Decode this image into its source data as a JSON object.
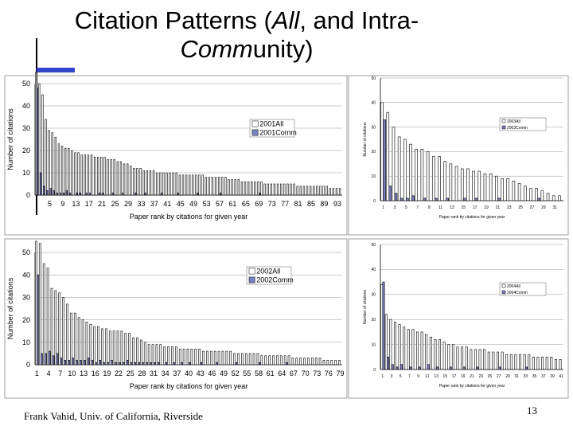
{
  "slide": {
    "title_part1": "Citation Patterns (",
    "title_em1": "All",
    "title_part2": ", and Intra-",
    "title_em2": "Comm",
    "title_part3": "unity)",
    "footer": "Frank Vahid, Univ. of California, Riverside",
    "page_number": "13"
  },
  "colors": {
    "all_fill": "#ffffff",
    "comm_fill": "#7b80c0",
    "bar_stroke": "#000000",
    "accent": "#3344cc"
  },
  "chart_data": [
    {
      "type": "bar",
      "xlabel": "Paper rank by citations for given year",
      "ylabel": "Number of citations",
      "ylim": [
        0,
        50
      ],
      "yticks": [
        0,
        10,
        20,
        30,
        40,
        50
      ],
      "xticks": [
        "5",
        "9",
        "13",
        "17",
        "21",
        "25",
        "29",
        "33",
        "37",
        "41",
        "45",
        "49",
        "53",
        "57",
        "61",
        "65",
        "69",
        "73",
        "77",
        "81",
        "85",
        "89",
        "93"
      ],
      "series": [
        {
          "name": "2001All",
          "values": [
            55,
            50,
            45,
            34,
            29,
            28,
            26,
            23,
            22,
            21,
            21,
            20,
            19,
            19,
            18,
            18,
            18,
            18,
            17,
            17,
            17,
            17,
            16,
            16,
            16,
            15,
            15,
            14,
            14,
            13,
            12,
            12,
            12,
            11,
            11,
            11,
            11,
            10,
            10,
            10,
            10,
            10,
            10,
            10,
            9,
            9,
            9,
            9,
            9,
            9,
            9,
            9,
            8,
            8,
            8,
            8,
            8,
            8,
            8,
            7,
            7,
            7,
            7,
            6,
            6,
            6,
            6,
            6,
            6,
            6,
            5,
            5,
            5,
            5,
            5,
            5,
            5,
            5,
            5,
            5,
            4,
            4,
            4,
            4,
            4,
            4,
            4,
            4,
            4,
            4,
            3,
            3,
            3,
            3
          ]
        },
        {
          "name": "2001Comm",
          "values": [
            48,
            10,
            4,
            2,
            3,
            2,
            1,
            1,
            1,
            2,
            1,
            0,
            1,
            1,
            0,
            1,
            1,
            0,
            0,
            1,
            1,
            0,
            0,
            1,
            0,
            0,
            1,
            0,
            0,
            0,
            1,
            0,
            0,
            1,
            0,
            0,
            0,
            0,
            1,
            0,
            0,
            0,
            0,
            1,
            0,
            0,
            0,
            0,
            0,
            1,
            0,
            0,
            0,
            0,
            0,
            0,
            1,
            0,
            0,
            0,
            0,
            0,
            0,
            0,
            0,
            0,
            0,
            0,
            1,
            0,
            0,
            0,
            0,
            0,
            0,
            0,
            0,
            0,
            0,
            0,
            0,
            0,
            0,
            0,
            0,
            0,
            0,
            0,
            0,
            0,
            0,
            0,
            0,
            0
          ]
        }
      ]
    },
    {
      "type": "bar",
      "xlabel": "Paper rank by citations for given year",
      "ylabel": "Number of citations",
      "ylim": [
        0,
        50
      ],
      "yticks": [
        0,
        10,
        20,
        30,
        40,
        50
      ],
      "xticks": [
        "1",
        "3",
        "5",
        "7",
        "9",
        "11",
        "13",
        "15",
        "17",
        "19",
        "21",
        "23",
        "25",
        "27",
        "29",
        "31"
      ],
      "series": [
        {
          "name": "2003All",
          "values": [
            40,
            36,
            30,
            26,
            25,
            23,
            21,
            21,
            20,
            18,
            18,
            16,
            15,
            14,
            13,
            13,
            12,
            12,
            11,
            11,
            10,
            9,
            9,
            8,
            7,
            6,
            5,
            5,
            4,
            3,
            2,
            2
          ]
        },
        {
          "name": "2003Comm",
          "values": [
            33,
            6,
            3,
            1,
            1,
            2,
            0,
            1,
            0,
            1,
            0,
            1,
            0,
            0,
            1,
            0,
            1,
            0,
            0,
            0,
            1,
            0,
            0,
            0,
            0,
            0,
            0,
            1,
            0,
            0,
            0,
            0
          ]
        }
      ]
    },
    {
      "type": "bar",
      "xlabel": "Paper rank by citations for given year",
      "ylabel": "Number of citations",
      "ylim": [
        0,
        50
      ],
      "yticks": [
        0,
        10,
        20,
        30,
        40,
        50
      ],
      "xticks": [
        "1",
        "4",
        "7",
        "10",
        "13",
        "16",
        "19",
        "22",
        "25",
        "28",
        "31",
        "34",
        "37",
        "40",
        "43",
        "46",
        "49",
        "52",
        "55",
        "58",
        "61",
        "64",
        "67",
        "70",
        "73",
        "76",
        "79"
      ],
      "series": [
        {
          "name": "2002All",
          "values": [
            55,
            54,
            45,
            43,
            34,
            33,
            32,
            30,
            27,
            23,
            23,
            21,
            20,
            19,
            18,
            17,
            17,
            16,
            16,
            15,
            15,
            15,
            15,
            14,
            14,
            12,
            12,
            11,
            10,
            9,
            9,
            9,
            9,
            8,
            8,
            8,
            8,
            7,
            7,
            7,
            7,
            7,
            7,
            6,
            6,
            6,
            6,
            6,
            6,
            6,
            6,
            5,
            5,
            5,
            5,
            5,
            5,
            5,
            4,
            4,
            4,
            4,
            4,
            4,
            4,
            4,
            3,
            3,
            3,
            3,
            3,
            3,
            3,
            3,
            2,
            2,
            2,
            2,
            2
          ]
        },
        {
          "name": "2002Comm",
          "values": [
            40,
            5,
            5,
            6,
            4,
            5,
            3,
            2,
            2,
            3,
            2,
            2,
            2,
            3,
            2,
            1,
            2,
            1,
            1,
            2,
            1,
            1,
            1,
            2,
            1,
            1,
            1,
            1,
            1,
            1,
            1,
            1,
            0,
            1,
            0,
            1,
            0,
            1,
            0,
            1,
            0,
            0,
            1,
            0,
            0,
            0,
            1,
            0,
            0,
            0,
            0,
            1,
            0,
            0,
            0,
            0,
            0,
            1,
            0,
            0,
            0,
            0,
            0,
            0,
            1,
            0,
            0,
            0,
            0,
            0,
            0,
            0,
            0,
            0,
            0,
            0,
            0,
            0,
            0
          ]
        }
      ]
    },
    {
      "type": "bar",
      "xlabel": "Paper rank by citations for given year",
      "ylabel": "Number of citations",
      "ylim": [
        0,
        50
      ],
      "yticks": [
        0,
        10,
        20,
        30,
        40,
        50
      ],
      "xticks": [
        "1",
        "3",
        "5",
        "7",
        "9",
        "11",
        "13",
        "15",
        "17",
        "19",
        "21",
        "23",
        "25",
        "27",
        "29",
        "31",
        "33",
        "35",
        "37",
        "39",
        "41"
      ],
      "series": [
        {
          "name": "2004All",
          "values": [
            34,
            22,
            20,
            19,
            18,
            17,
            16,
            16,
            15,
            15,
            14,
            13,
            12,
            12,
            11,
            10,
            10,
            9,
            9,
            9,
            8,
            8,
            8,
            8,
            7,
            7,
            7,
            7,
            6,
            6,
            6,
            6,
            6,
            6,
            5,
            5,
            5,
            5,
            5,
            4,
            4
          ]
        },
        {
          "name": "2004Comm",
          "values": [
            35,
            5,
            2,
            1,
            2,
            0,
            1,
            0,
            1,
            0,
            2,
            0,
            1,
            0,
            0,
            1,
            0,
            0,
            1,
            0,
            0,
            1,
            0,
            0,
            0,
            0,
            1,
            0,
            0,
            0,
            0,
            0,
            1,
            0,
            0,
            0,
            0,
            0,
            0,
            0,
            0
          ]
        }
      ]
    }
  ]
}
